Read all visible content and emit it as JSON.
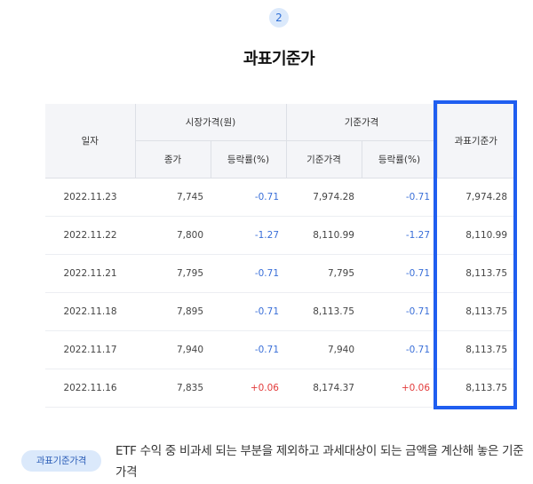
{
  "step_number": "2",
  "title": "과표기준가",
  "table": {
    "headers": {
      "date": "일자",
      "market_price": "시장가격(원)",
      "base_price": "기준가격",
      "tax_base_price": "과표기준가",
      "close": "종가",
      "change_rate_market": "등락률(%)",
      "base_price_sub": "기준가격",
      "change_rate_base": "등락률(%)"
    },
    "rows": [
      {
        "date": "2022.11.23",
        "close": "7,745",
        "market_change": "-0.71",
        "market_dir": "down",
        "base": "7,974.28",
        "base_change": "-0.71",
        "base_dir": "down",
        "tax_base": "7,974.28"
      },
      {
        "date": "2022.11.22",
        "close": "7,800",
        "market_change": "-1.27",
        "market_dir": "down",
        "base": "8,110.99",
        "base_change": "-1.27",
        "base_dir": "down",
        "tax_base": "8,110.99"
      },
      {
        "date": "2022.11.21",
        "close": "7,795",
        "market_change": "-0.71",
        "market_dir": "down",
        "base": "7,795",
        "base_change": "-0.71",
        "base_dir": "down",
        "tax_base": "8,113.75"
      },
      {
        "date": "2022.11.18",
        "close": "7,895",
        "market_change": "-0.71",
        "market_dir": "down",
        "base": "8,113.75",
        "base_change": "-0.71",
        "base_dir": "down",
        "tax_base": "8,113.75"
      },
      {
        "date": "2022.11.17",
        "close": "7,940",
        "market_change": "-0.71",
        "market_dir": "down",
        "base": "7,940",
        "base_change": "-0.71",
        "base_dir": "down",
        "tax_base": "8,113.75"
      },
      {
        "date": "2022.11.16",
        "close": "7,835",
        "market_change": "+0.06",
        "market_dir": "up",
        "base": "8,174.37",
        "base_change": "+0.06",
        "base_dir": "up",
        "tax_base": "8,113.75"
      }
    ]
  },
  "highlight_color": "#1f5ef0",
  "term": {
    "badge": "과표기준가격",
    "description": "ETF 수익 중 비과세 되는 부분을 제외하고 과세대상이 되는 금액을 계산해 놓은 기준가격"
  }
}
